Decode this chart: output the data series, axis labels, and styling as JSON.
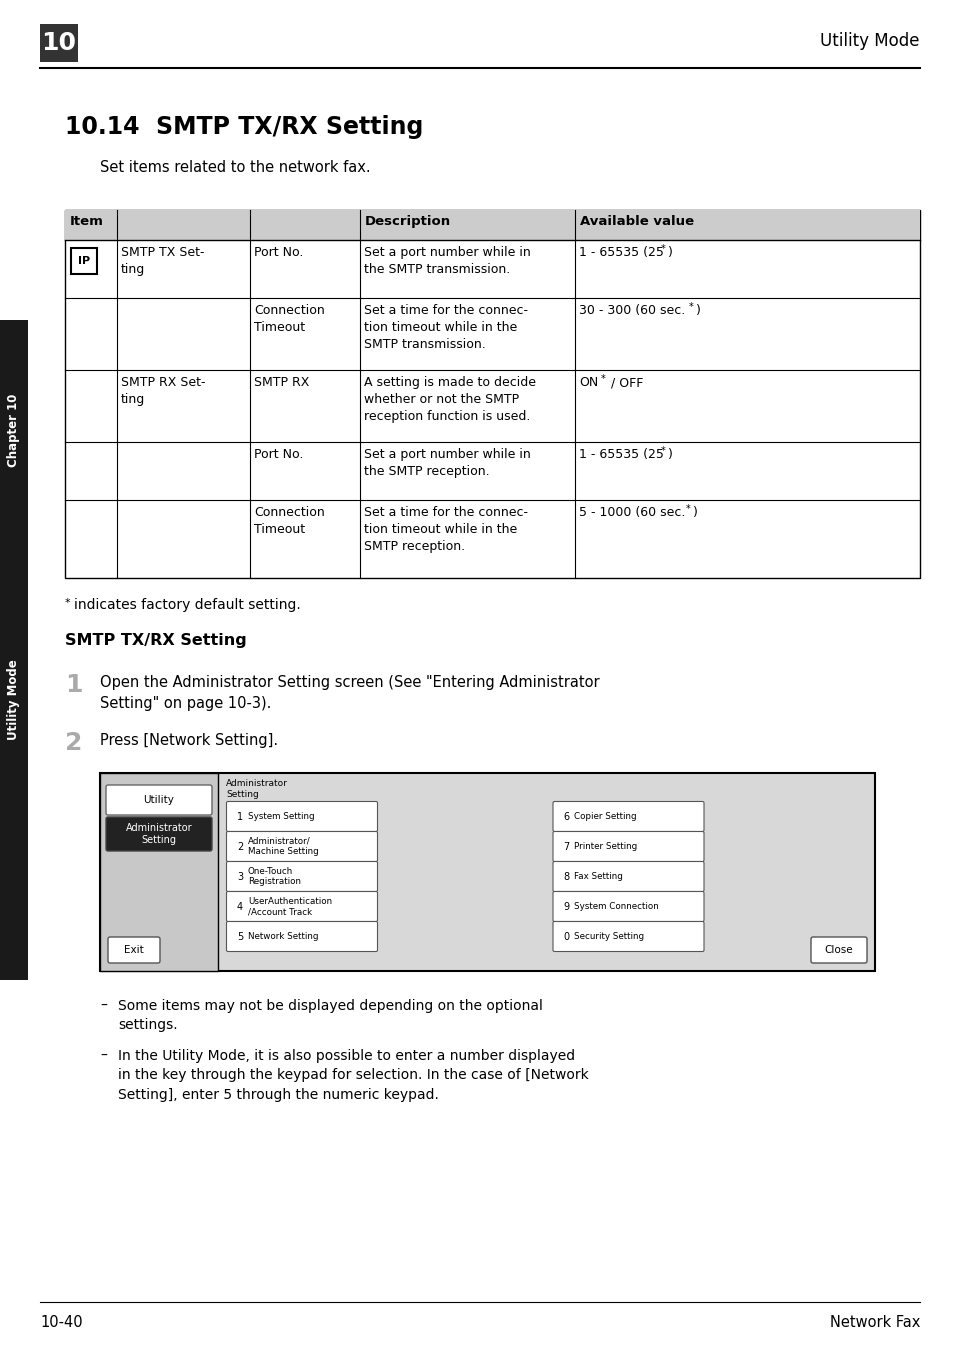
{
  "page_num": "10",
  "header_right": "Utility Mode",
  "section_title": "10.14  SMTP TX/RX Setting",
  "intro_text": "Set items related to the network fax.",
  "footnote": "* indicates factory default setting.",
  "bold_heading": "SMTP TX/RX Setting",
  "step1_text": "Open the Administrator Setting screen (See \"Entering Administrator\nSetting\" on page 10-3).",
  "step2_text": "Press [Network Setting].",
  "bullet1": "Some items may not be displayed depending on the optional\nsettings.",
  "bullet2": "In the Utility Mode, it is also possible to enter a number displayed\nin the key through the keypad for selection. In the case of [Network\nSetting], enter 5 through the numeric keypad.",
  "footer_left": "10-40",
  "footer_right": "Network Fax",
  "sidebar_top": "Chapter 10",
  "sidebar_bottom": "Utility Mode",
  "bg_color": "#ffffff",
  "table_header_bg": "#cccccc",
  "table_border": "#000000",
  "sidebar_bg": "#1a1a1a",
  "sidebar_text": "#ffffff"
}
